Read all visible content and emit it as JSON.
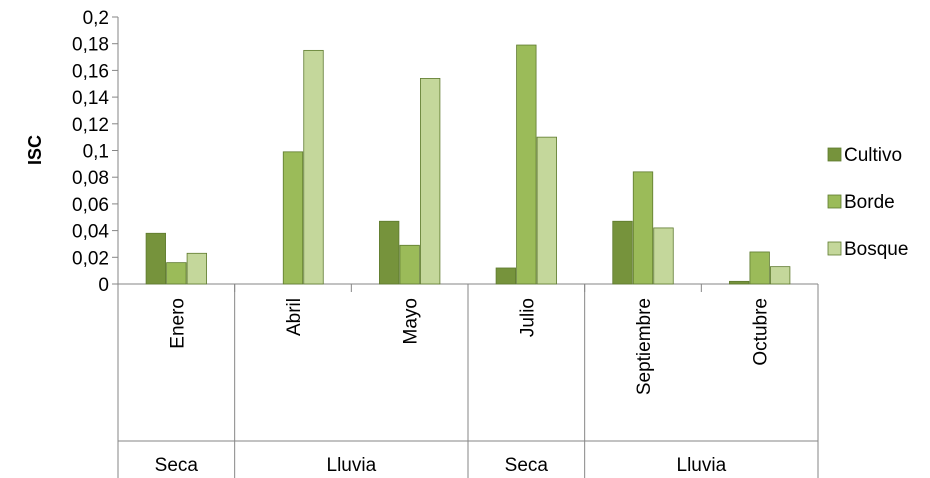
{
  "chart_data": {
    "type": "bar",
    "title": "",
    "ylabel": "ISC",
    "xlabel": "",
    "ylim": [
      0,
      0.2
    ],
    "yticks": [
      "0",
      "0,02",
      "0,04",
      "0,06",
      "0,08",
      "0,1",
      "0,12",
      "0,14",
      "0,16",
      "0,18",
      "0,2"
    ],
    "categories": [
      "Enero",
      "Abril",
      "Mayo",
      "Julio",
      "Septiembre",
      "Octubre"
    ],
    "groups": [
      {
        "label": "Seca",
        "span": 1
      },
      {
        "label": "Lluvia",
        "span": 2
      },
      {
        "label": "Seca",
        "span": 1
      },
      {
        "label": "Lluvia",
        "span": 2
      }
    ],
    "series": [
      {
        "name": "Cultivo",
        "color": "#76933c",
        "values": [
          0.038,
          0,
          0.047,
          0.012,
          0.047,
          0.002
        ]
      },
      {
        "name": "Borde",
        "color": "#9bbb59",
        "values": [
          0.016,
          0.099,
          0.029,
          0.179,
          0.084,
          0.024
        ]
      },
      {
        "name": "Bosque",
        "color": "#c4d79b",
        "values": [
          0.023,
          0.175,
          0.154,
          0.11,
          0.042,
          0.013
        ]
      }
    ],
    "grid": false,
    "legend": "right"
  }
}
